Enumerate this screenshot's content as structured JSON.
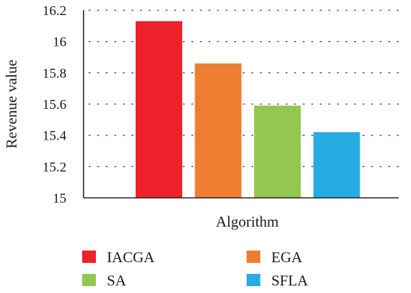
{
  "chart_data": {
    "type": "bar",
    "title": "",
    "xlabel": "Algorithm",
    "ylabel": "Revenue value",
    "ylim": [
      15,
      16.2
    ],
    "yticks": [
      15,
      15.2,
      15.4,
      15.6,
      15.8,
      16,
      16.2
    ],
    "ytick_labels": [
      "15",
      "15.2",
      "15.4",
      "15.6",
      "15.8",
      "16",
      "16.2"
    ],
    "grid": "horizontal-dotted",
    "legend_position": "bottom",
    "series": [
      {
        "name": "IACGA",
        "value": 16.13,
        "color": "#ee2029"
      },
      {
        "name": "EGA",
        "value": 15.86,
        "color": "#ef7d31"
      },
      {
        "name": "SA",
        "value": 15.59,
        "color": "#92c850"
      },
      {
        "name": "SFLA",
        "value": 15.42,
        "color": "#26abe3"
      }
    ]
  }
}
